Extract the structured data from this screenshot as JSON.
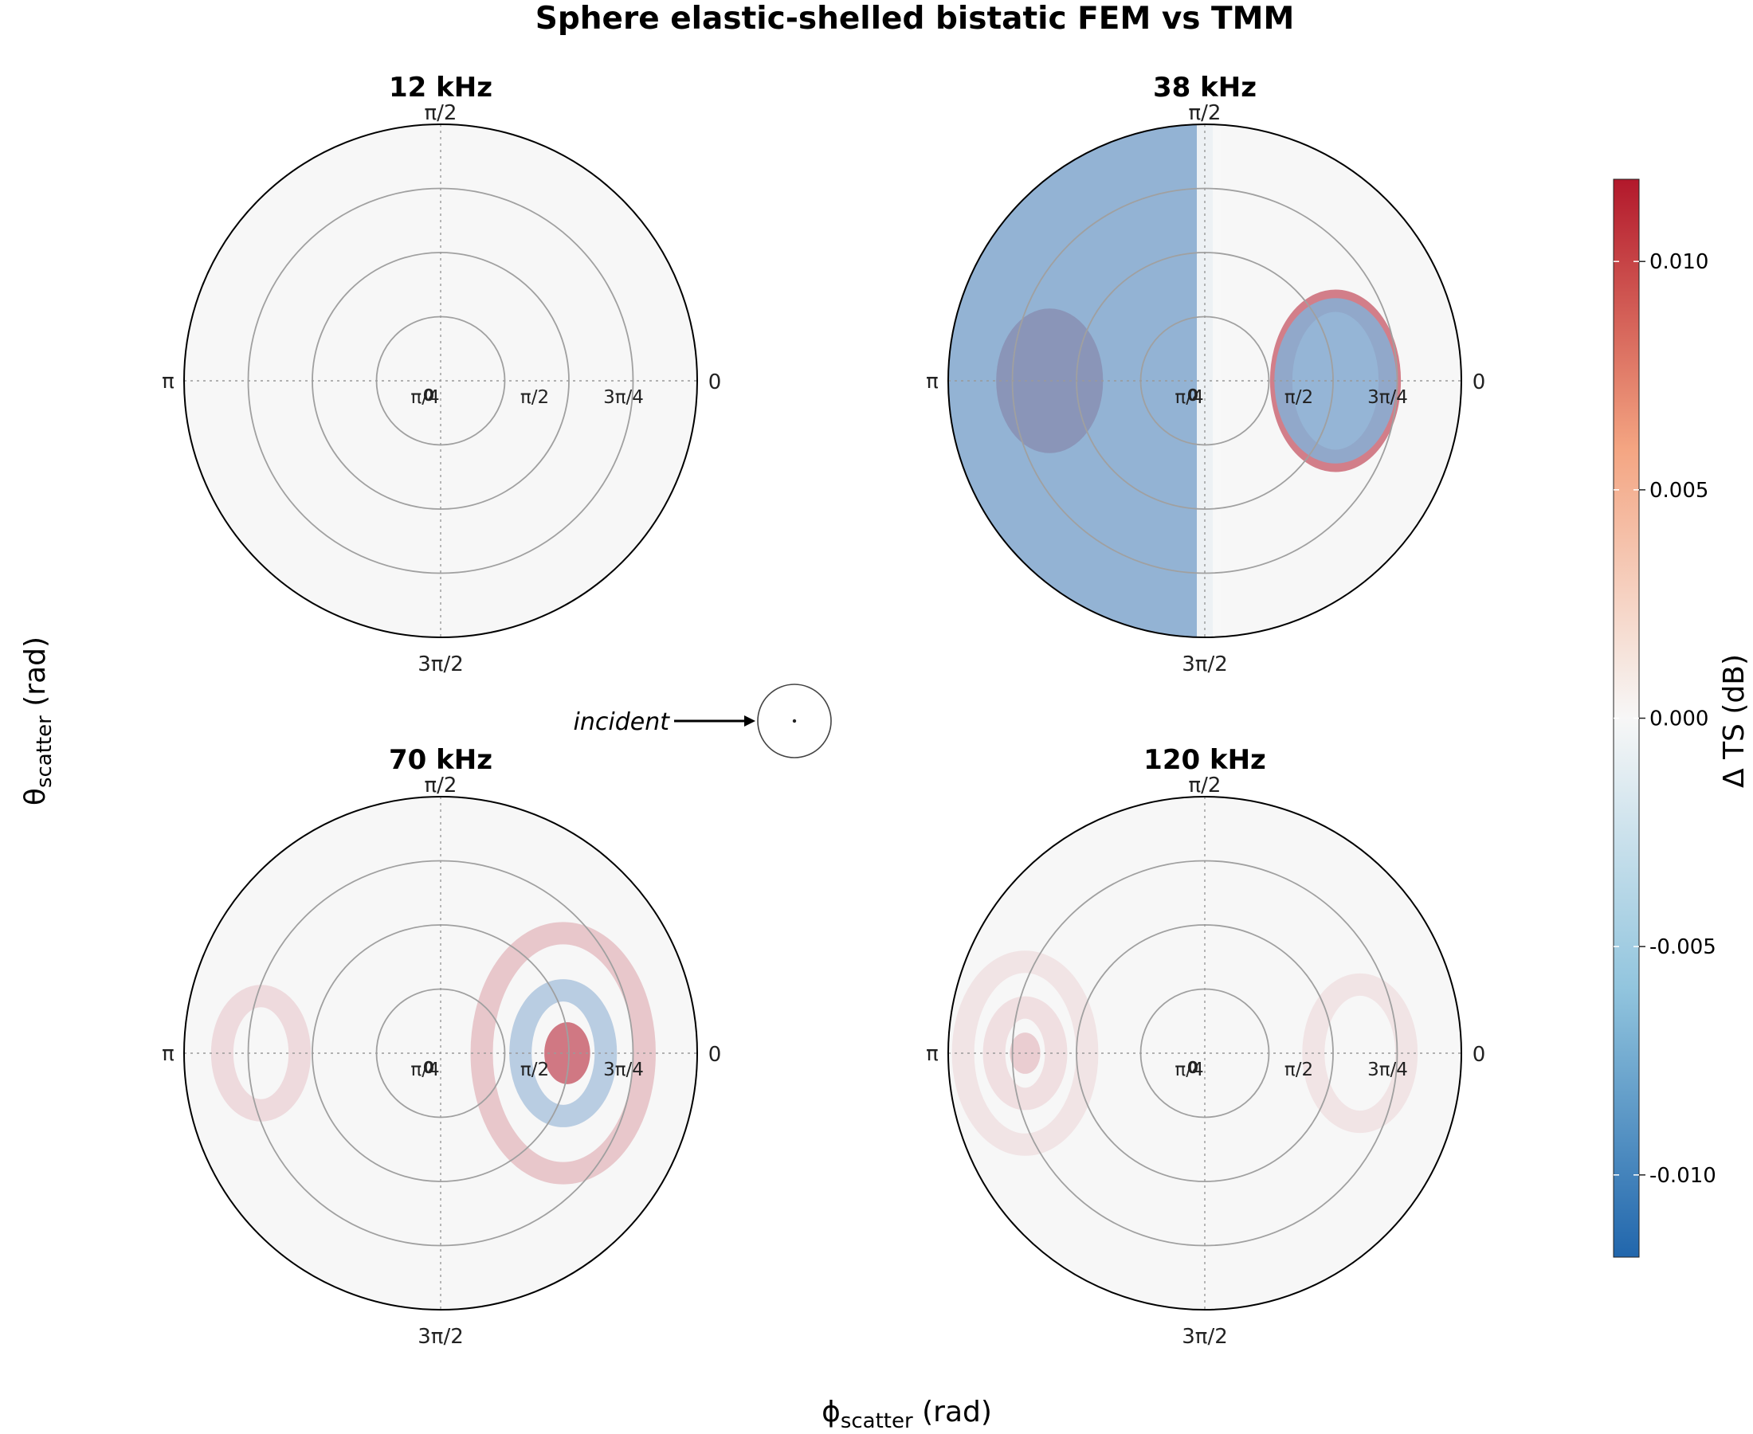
{
  "title": "Sphere elastic-shelled bistatic FEM vs TMM",
  "axis_titles": {
    "x_main": "ϕ",
    "x_sub": "scatter",
    "x_unit": " (rad)",
    "y_main": "θ",
    "y_sub": "scatter",
    "y_unit": " (rad)"
  },
  "angular_labels": {
    "top": "π/2",
    "left": "π",
    "right": "0",
    "bottom": "3π/2"
  },
  "radial_labels": [
    "0",
    "π/4",
    "π/2",
    "3π/4"
  ],
  "incident_label": "incident",
  "colorbar": {
    "title": "Δ TS (dB)",
    "range": [
      -0.0118,
      0.0118
    ],
    "ticks": [
      {
        "value": 0.01,
        "label": "0.010"
      },
      {
        "value": 0.005,
        "label": "0.005"
      },
      {
        "value": 0.0,
        "label": "0.000"
      },
      {
        "value": -0.005,
        "label": "-0.005"
      },
      {
        "value": -0.01,
        "label": "-0.010"
      }
    ],
    "colors": {
      "low": "#2166ac",
      "mid": "#f7f7f7",
      "high": "#b2182b"
    }
  },
  "chart_data": {
    "type": "heatmap",
    "coordinate_system": "polar",
    "theta_range": [
      0,
      3.1416
    ],
    "phi_range": [
      0,
      6.2832
    ],
    "value_unit": "dB",
    "panels": [
      {
        "title": "12 kHz",
        "features": [
          {
            "kind": "uniform",
            "value": 0.0
          }
        ]
      },
      {
        "title": "38 kHz",
        "features": [
          {
            "kind": "blob",
            "phi": 3.1416,
            "theta": 1.9,
            "value": 0.0118,
            "spread": 0.35
          },
          {
            "kind": "ring",
            "phi": 0.0,
            "theta": 1.6,
            "radius": 0.7,
            "value": 0.0075
          },
          {
            "kind": "blob",
            "phi": 0.0,
            "theta": 1.6,
            "value": -0.006,
            "spread": 0.4
          },
          {
            "kind": "band",
            "value": -0.0065
          }
        ]
      },
      {
        "title": "70 kHz",
        "features": [
          {
            "kind": "ring",
            "phi": 0.0,
            "theta": 1.5,
            "radius": 0.55,
            "value": -0.004
          },
          {
            "kind": "blob",
            "phi": 0.0,
            "theta": 1.55,
            "value": 0.0075,
            "spread": 0.15
          },
          {
            "kind": "ring",
            "phi": 0.0,
            "theta": 1.5,
            "radius": 1.05,
            "value": 0.003
          },
          {
            "kind": "ring",
            "phi": 3.1416,
            "theta": 2.2,
            "radius": 0.5,
            "value": 0.0018
          }
        ]
      },
      {
        "title": "120 kHz",
        "features": [
          {
            "kind": "ring",
            "phi": 3.1416,
            "theta": 2.2,
            "radius": 0.4,
            "value": 0.0015
          },
          {
            "kind": "ring",
            "phi": 3.1416,
            "theta": 2.2,
            "radius": 0.8,
            "value": 0.0012
          },
          {
            "kind": "ring",
            "phi": 0.0,
            "theta": 1.9,
            "radius": 0.6,
            "value": 0.0012
          },
          {
            "kind": "blob",
            "phi": 3.1416,
            "theta": 2.2,
            "value": 0.0025,
            "spread": 0.1
          }
        ]
      }
    ]
  }
}
